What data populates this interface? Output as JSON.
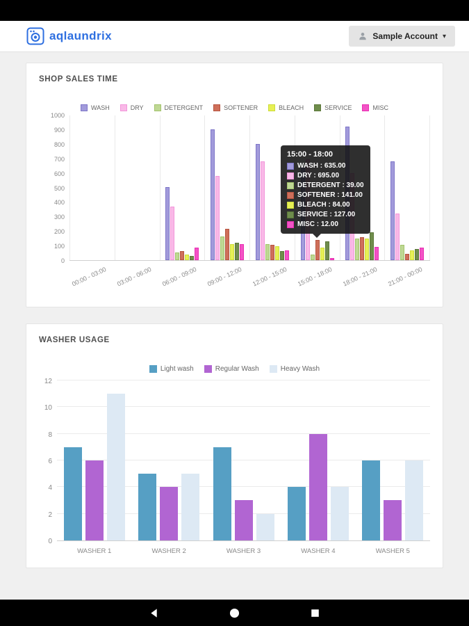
{
  "header": {
    "logo_text": "aqlaundrix",
    "account_label": "Sample Account",
    "caret": "▾"
  },
  "chart_data": [
    {
      "type": "bar",
      "title": "SHOP SALES TIME",
      "categories": [
        "00:00 - 03:00",
        "03:00 - 06:00",
        "06:00 - 09:00",
        "09:00 - 12:00",
        "12:00 - 15:00",
        "15:00 - 18:00",
        "18:00 - 21:00",
        "21:00 - 00:00"
      ],
      "series": [
        {
          "name": "WASH",
          "color": "#a29bdb",
          "border": "#7d75c8",
          "values": [
            0,
            0,
            500,
            900,
            800,
            635,
            920,
            680
          ]
        },
        {
          "name": "DRY",
          "color": "#f9b9e7",
          "border": "#f295da",
          "values": [
            0,
            0,
            370,
            580,
            680,
            695,
            600,
            320
          ]
        },
        {
          "name": "DETERGENT",
          "color": "#bfd894",
          "border": "#a2c26b",
          "values": [
            0,
            0,
            55,
            165,
            110,
            39,
            150,
            105
          ]
        },
        {
          "name": "SOFTENER",
          "color": "#cf6f5a",
          "border": "#b65440",
          "values": [
            0,
            0,
            60,
            215,
            105,
            141,
            160,
            45
          ]
        },
        {
          "name": "BLEACH",
          "color": "#e7f055",
          "border": "#ccdc39",
          "values": [
            0,
            0,
            40,
            110,
            95,
            84,
            150,
            65
          ]
        },
        {
          "name": "SERVICE",
          "color": "#6f8d4c",
          "border": "#5a7638",
          "values": [
            0,
            0,
            30,
            120,
            60,
            127,
            190,
            75
          ]
        },
        {
          "name": "MISC",
          "color": "#f353c5",
          "border": "#e82eb3",
          "values": [
            0,
            0,
            85,
            110,
            65,
            12,
            90,
            85
          ]
        }
      ],
      "ylim": [
        0,
        1000
      ],
      "yticks": [
        0,
        100,
        200,
        300,
        400,
        500,
        600,
        700,
        800,
        900,
        1000
      ],
      "legend_position": "top",
      "grid": "vertical",
      "tooltip": {
        "title": "15:00 - 18:00",
        "rows": [
          {
            "label": "WASH",
            "value": "635.00"
          },
          {
            "label": "DRY",
            "value": "695.00"
          },
          {
            "label": "DETERGENT",
            "value": "39.00"
          },
          {
            "label": "SOFTENER",
            "value": "141.00"
          },
          {
            "label": "BLEACH",
            "value": "84.00"
          },
          {
            "label": "SERVICE",
            "value": "127.00"
          },
          {
            "label": "MISC",
            "value": "12.00"
          }
        ]
      }
    },
    {
      "type": "bar",
      "title": "WASHER USAGE",
      "categories": [
        "WASHER 1",
        "WASHER 2",
        "WASHER 3",
        "WASHER 4",
        "WASHER 5"
      ],
      "series": [
        {
          "name": "Light wash",
          "color": "#569fc4",
          "values": [
            7,
            5,
            7,
            4,
            6
          ]
        },
        {
          "name": "Regular Wash",
          "color": "#b165d2",
          "values": [
            6,
            4,
            3,
            8,
            3
          ]
        },
        {
          "name": "Heavy Wash",
          "color": "#dde9f4",
          "values": [
            11,
            5,
            2,
            4,
            6
          ]
        }
      ],
      "ylim": [
        0,
        12
      ],
      "yticks": [
        0,
        2,
        4,
        6,
        8,
        10,
        12
      ],
      "legend_position": "top",
      "grid": "horizontal"
    }
  ]
}
